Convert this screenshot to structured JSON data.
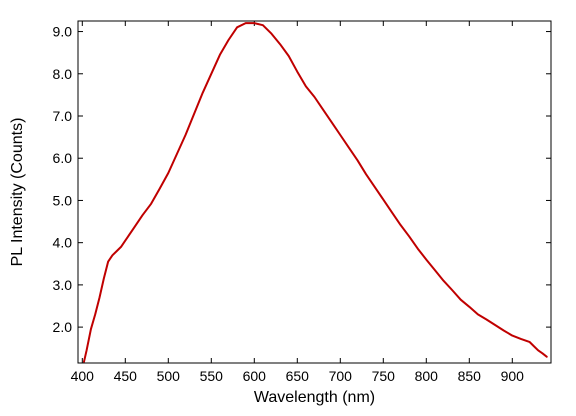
{
  "chart_data": {
    "type": "line",
    "title": "",
    "xlabel": "Wavelength (nm)",
    "ylabel": "PL Intensity (Counts)",
    "xlim": [
      395,
      945
    ],
    "ylim": [
      1.15,
      9.25
    ],
    "xticks": [
      400,
      450,
      500,
      550,
      600,
      650,
      700,
      750,
      800,
      850,
      900
    ],
    "xtick_labels": [
      "400",
      "450",
      "500",
      "550",
      "600",
      "650",
      "700",
      "750",
      "800",
      "850",
      "900"
    ],
    "yticks": [
      2.0,
      3.0,
      4.0,
      5.0,
      6.0,
      7.0,
      8.0,
      9.0
    ],
    "ytick_labels": [
      "2.0",
      "3.0",
      "4.0",
      "5.0",
      "6.0",
      "7.0",
      "8.0",
      "9.0"
    ],
    "grid": false,
    "legend": "none",
    "series": [
      {
        "color": "#c00000",
        "x": [
          402,
          405,
          410,
          415,
          420,
          425,
          430,
          435,
          440,
          445,
          450,
          460,
          470,
          480,
          490,
          500,
          510,
          520,
          530,
          540,
          550,
          560,
          570,
          580,
          590,
          600,
          610,
          620,
          630,
          640,
          650,
          660,
          670,
          680,
          690,
          700,
          710,
          720,
          730,
          740,
          750,
          760,
          770,
          780,
          790,
          800,
          810,
          820,
          830,
          840,
          850,
          860,
          870,
          880,
          890,
          900,
          910,
          920,
          925,
          930,
          935,
          940
        ],
        "y": [
          1.18,
          1.45,
          1.95,
          2.3,
          2.7,
          3.15,
          3.55,
          3.7,
          3.8,
          3.9,
          4.05,
          4.35,
          4.65,
          4.92,
          5.28,
          5.65,
          6.1,
          6.55,
          7.05,
          7.55,
          8.0,
          8.45,
          8.8,
          9.1,
          9.2,
          9.2,
          9.15,
          8.95,
          8.7,
          8.42,
          8.05,
          7.7,
          7.45,
          7.15,
          6.85,
          6.55,
          6.25,
          5.95,
          5.62,
          5.32,
          5.02,
          4.72,
          4.42,
          4.15,
          3.86,
          3.6,
          3.35,
          3.1,
          2.88,
          2.65,
          2.48,
          2.3,
          2.18,
          2.05,
          1.92,
          1.8,
          1.72,
          1.65,
          1.55,
          1.45,
          1.38,
          1.3
        ]
      }
    ]
  }
}
